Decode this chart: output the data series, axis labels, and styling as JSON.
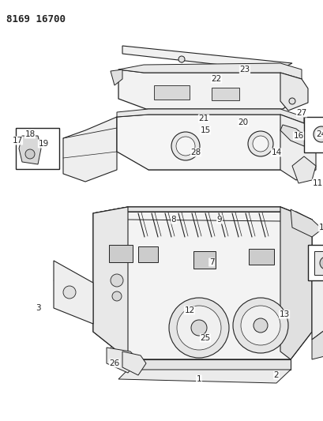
{
  "title_text": "8169 16700",
  "bg_color": "#ffffff",
  "line_color": "#222222",
  "label_fontsize": 7.5,
  "figsize": [
    4.1,
    5.33
  ],
  "dpi": 100
}
